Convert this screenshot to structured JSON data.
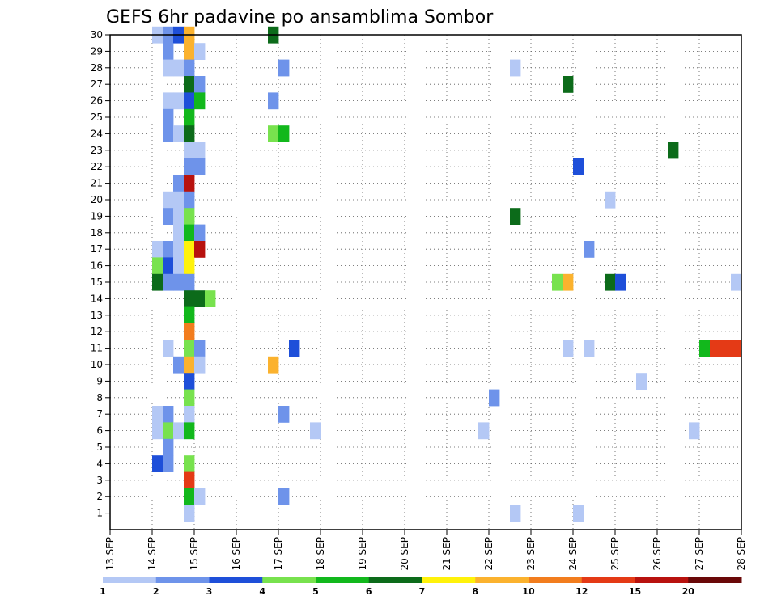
{
  "chart_data": {
    "type": "heatmap",
    "title": "GEFS 6hr padavine po ansamblima Sombor",
    "x_tick_labels": [
      "13 SEP",
      "14 SEP",
      "15 SEP",
      "16 SEP",
      "17 SEP",
      "18 SEP",
      "19 SEP",
      "20 SEP",
      "21 SEP",
      "22 SEP",
      "23 SEP",
      "24 SEP",
      "25 SEP",
      "26 SEP",
      "27 SEP",
      "28 SEP"
    ],
    "y_tick_labels": [
      "1",
      "2",
      "3",
      "4",
      "5",
      "6",
      "7",
      "8",
      "9",
      "10",
      "11",
      "12",
      "13",
      "14",
      "15",
      "16",
      "17",
      "18",
      "19",
      "20",
      "21",
      "22",
      "23",
      "24",
      "25",
      "26",
      "27",
      "28",
      "29",
      "30"
    ],
    "x_range_days": [
      13,
      28
    ],
    "y_range": [
      0,
      30
    ],
    "grid": true,
    "legend": "bottom",
    "color_levels": [
      {
        "label": "1",
        "color": "#b4c8f5"
      },
      {
        "label": "2",
        "color": "#6e93ea"
      },
      {
        "label": "3",
        "color": "#1e4fd9"
      },
      {
        "label": "4",
        "color": "#78e24e"
      },
      {
        "label": "5",
        "color": "#12b81c"
      },
      {
        "label": "6",
        "color": "#0c6b1a"
      },
      {
        "label": "7",
        "color": "#fff20a"
      },
      {
        "label": "8",
        "color": "#fbb22e"
      },
      {
        "label": "10",
        "color": "#f27d1e"
      },
      {
        "label": "12",
        "color": "#e43a16"
      },
      {
        "label": "15",
        "color": "#b8120e"
      },
      {
        "label": "20",
        "color": "#6a0808"
      }
    ],
    "cells": [
      {
        "x": 14.0,
        "y": 30,
        "level": 0
      },
      {
        "x": 14.25,
        "y": 30,
        "level": 1
      },
      {
        "x": 14.5,
        "y": 30,
        "level": 2
      },
      {
        "x": 14.75,
        "y": 30,
        "level": 7
      },
      {
        "x": 16.75,
        "y": 30,
        "level": 5
      },
      {
        "x": 14.25,
        "y": 29,
        "level": 1
      },
      {
        "x": 14.75,
        "y": 29,
        "level": 7
      },
      {
        "x": 15.0,
        "y": 29,
        "level": 0
      },
      {
        "x": 14.25,
        "y": 28,
        "level": 0
      },
      {
        "x": 14.5,
        "y": 28,
        "level": 0
      },
      {
        "x": 14.75,
        "y": 28,
        "level": 1
      },
      {
        "x": 17.0,
        "y": 28,
        "level": 1
      },
      {
        "x": 22.5,
        "y": 28,
        "level": 0
      },
      {
        "x": 14.75,
        "y": 27,
        "level": 5
      },
      {
        "x": 15.0,
        "y": 27,
        "level": 1
      },
      {
        "x": 23.75,
        "y": 27,
        "level": 5
      },
      {
        "x": 14.25,
        "y": 26,
        "level": 0
      },
      {
        "x": 14.5,
        "y": 26,
        "level": 0
      },
      {
        "x": 14.75,
        "y": 26,
        "level": 2
      },
      {
        "x": 15.0,
        "y": 26,
        "level": 4
      },
      {
        "x": 16.75,
        "y": 26,
        "level": 1
      },
      {
        "x": 14.25,
        "y": 25,
        "level": 1
      },
      {
        "x": 14.75,
        "y": 25,
        "level": 4
      },
      {
        "x": 14.25,
        "y": 24,
        "level": 1
      },
      {
        "x": 14.5,
        "y": 24,
        "level": 0
      },
      {
        "x": 14.75,
        "y": 24,
        "level": 5
      },
      {
        "x": 16.75,
        "y": 24,
        "level": 3
      },
      {
        "x": 17.0,
        "y": 24,
        "level": 4
      },
      {
        "x": 14.75,
        "y": 23,
        "level": 0
      },
      {
        "x": 15.0,
        "y": 23,
        "level": 0
      },
      {
        "x": 26.25,
        "y": 23,
        "level": 5
      },
      {
        "x": 14.75,
        "y": 22,
        "level": 1
      },
      {
        "x": 15.0,
        "y": 22,
        "level": 1
      },
      {
        "x": 24.0,
        "y": 22,
        "level": 2
      },
      {
        "x": 14.5,
        "y": 21,
        "level": 1
      },
      {
        "x": 14.75,
        "y": 21,
        "level": 10
      },
      {
        "x": 14.25,
        "y": 20,
        "level": 0
      },
      {
        "x": 14.5,
        "y": 20,
        "level": 0
      },
      {
        "x": 14.75,
        "y": 20,
        "level": 1
      },
      {
        "x": 24.75,
        "y": 20,
        "level": 0
      },
      {
        "x": 14.25,
        "y": 19,
        "level": 1
      },
      {
        "x": 14.5,
        "y": 19,
        "level": 0
      },
      {
        "x": 14.75,
        "y": 19,
        "level": 3
      },
      {
        "x": 22.5,
        "y": 19,
        "level": 5
      },
      {
        "x": 14.5,
        "y": 18,
        "level": 0
      },
      {
        "x": 14.75,
        "y": 18,
        "level": 4
      },
      {
        "x": 15.0,
        "y": 18,
        "level": 1
      },
      {
        "x": 14.0,
        "y": 17,
        "level": 0
      },
      {
        "x": 14.25,
        "y": 17,
        "level": 1
      },
      {
        "x": 14.5,
        "y": 17,
        "level": 0
      },
      {
        "x": 14.75,
        "y": 17,
        "level": 6
      },
      {
        "x": 15.0,
        "y": 17,
        "level": 10
      },
      {
        "x": 24.25,
        "y": 17,
        "level": 1
      },
      {
        "x": 14.0,
        "y": 16,
        "level": 3
      },
      {
        "x": 14.25,
        "y": 16,
        "level": 2
      },
      {
        "x": 14.5,
        "y": 16,
        "level": 0
      },
      {
        "x": 14.75,
        "y": 16,
        "level": 6
      },
      {
        "x": 14.0,
        "y": 15,
        "level": 5
      },
      {
        "x": 14.25,
        "y": 15,
        "level": 1
      },
      {
        "x": 14.5,
        "y": 15,
        "level": 1
      },
      {
        "x": 14.75,
        "y": 15,
        "level": 1
      },
      {
        "x": 23.5,
        "y": 15,
        "level": 3
      },
      {
        "x": 23.75,
        "y": 15,
        "level": 7
      },
      {
        "x": 24.75,
        "y": 15,
        "level": 5
      },
      {
        "x": 25.0,
        "y": 15,
        "level": 2
      },
      {
        "x": 27.75,
        "y": 15,
        "level": 0
      },
      {
        "x": 14.75,
        "y": 14,
        "level": 5
      },
      {
        "x": 15.0,
        "y": 14,
        "level": 5
      },
      {
        "x": 15.25,
        "y": 14,
        "level": 3
      },
      {
        "x": 14.75,
        "y": 13,
        "level": 4
      },
      {
        "x": 14.75,
        "y": 12,
        "level": 8
      },
      {
        "x": 14.25,
        "y": 11,
        "level": 0
      },
      {
        "x": 14.75,
        "y": 11,
        "level": 3
      },
      {
        "x": 15.0,
        "y": 11,
        "level": 1
      },
      {
        "x": 17.25,
        "y": 11,
        "level": 2
      },
      {
        "x": 23.75,
        "y": 11,
        "level": 0
      },
      {
        "x": 24.25,
        "y": 11,
        "level": 0
      },
      {
        "x": 27.0,
        "y": 11,
        "level": 4
      },
      {
        "x": 27.25,
        "y": 11,
        "level": 9
      },
      {
        "x": 27.5,
        "y": 11,
        "level": 9
      },
      {
        "x": 27.75,
        "y": 11,
        "level": 9
      },
      {
        "x": 14.5,
        "y": 10,
        "level": 1
      },
      {
        "x": 14.75,
        "y": 10,
        "level": 7
      },
      {
        "x": 15.0,
        "y": 10,
        "level": 0
      },
      {
        "x": 16.75,
        "y": 10,
        "level": 7
      },
      {
        "x": 14.75,
        "y": 9,
        "level": 2
      },
      {
        "x": 25.5,
        "y": 9,
        "level": 0
      },
      {
        "x": 14.75,
        "y": 8,
        "level": 3
      },
      {
        "x": 22.0,
        "y": 8,
        "level": 1
      },
      {
        "x": 14.0,
        "y": 7,
        "level": 0
      },
      {
        "x": 14.25,
        "y": 7,
        "level": 1
      },
      {
        "x": 14.75,
        "y": 7,
        "level": 0
      },
      {
        "x": 17.0,
        "y": 7,
        "level": 1
      },
      {
        "x": 14.0,
        "y": 6,
        "level": 0
      },
      {
        "x": 14.25,
        "y": 6,
        "level": 3
      },
      {
        "x": 14.5,
        "y": 6,
        "level": 0
      },
      {
        "x": 14.75,
        "y": 6,
        "level": 4
      },
      {
        "x": 17.75,
        "y": 6,
        "level": 0
      },
      {
        "x": 21.75,
        "y": 6,
        "level": 0
      },
      {
        "x": 26.75,
        "y": 6,
        "level": 0
      },
      {
        "x": 14.25,
        "y": 5,
        "level": 1
      },
      {
        "x": 14.0,
        "y": 4,
        "level": 2
      },
      {
        "x": 14.25,
        "y": 4,
        "level": 1
      },
      {
        "x": 14.75,
        "y": 4,
        "level": 3
      },
      {
        "x": 14.75,
        "y": 3,
        "level": 9
      },
      {
        "x": 14.75,
        "y": 2,
        "level": 4
      },
      {
        "x": 15.0,
        "y": 2,
        "level": 0
      },
      {
        "x": 17.0,
        "y": 2,
        "level": 1
      },
      {
        "x": 14.75,
        "y": 1,
        "level": 0
      },
      {
        "x": 22.5,
        "y": 1,
        "level": 0
      },
      {
        "x": 24.0,
        "y": 1,
        "level": 0
      }
    ]
  }
}
